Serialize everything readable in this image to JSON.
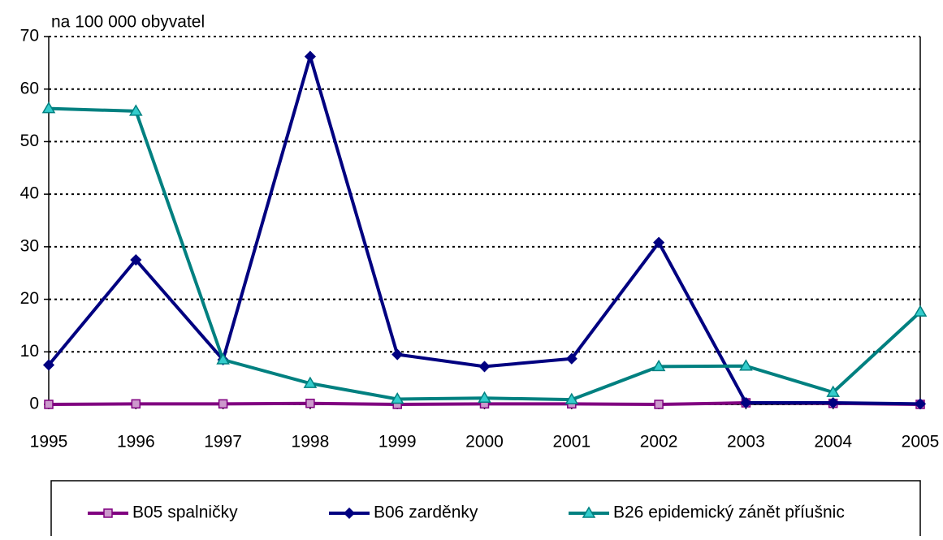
{
  "chart_data": {
    "type": "line",
    "axis_label": "na 100 000 obyvatel",
    "x": [
      1995,
      1996,
      1997,
      1998,
      1999,
      2000,
      2001,
      2002,
      2003,
      2004,
      2005
    ],
    "xlim": [
      1995,
      2005
    ],
    "ylim": [
      0,
      70
    ],
    "yticks": [
      0,
      10,
      20,
      30,
      40,
      50,
      60,
      70
    ],
    "grid": true,
    "series": [
      {
        "name": "B05 spalničky",
        "color": "#800080",
        "marker": "square",
        "marker_color": "#cc99cc",
        "values": [
          0,
          0.1,
          0.1,
          0.2,
          0,
          0.1,
          0.1,
          0,
          0.3,
          0.2,
          0
        ]
      },
      {
        "name": "B06 zarděnky",
        "color": "#000080",
        "marker": "diamond",
        "marker_color": "#000080",
        "values": [
          7.5,
          27.5,
          8.5,
          66.2,
          9.5,
          7.2,
          8.7,
          30.8,
          0.3,
          0.3,
          0.1
        ]
      },
      {
        "name": "B26 epidemický zánět příušnic",
        "color": "#008080",
        "marker": "triangle",
        "marker_color": "#33cccc",
        "values": [
          56.3,
          55.8,
          8.5,
          4,
          1,
          1.2,
          0.9,
          7.2,
          7.3,
          2.3,
          17.6
        ]
      }
    ]
  }
}
